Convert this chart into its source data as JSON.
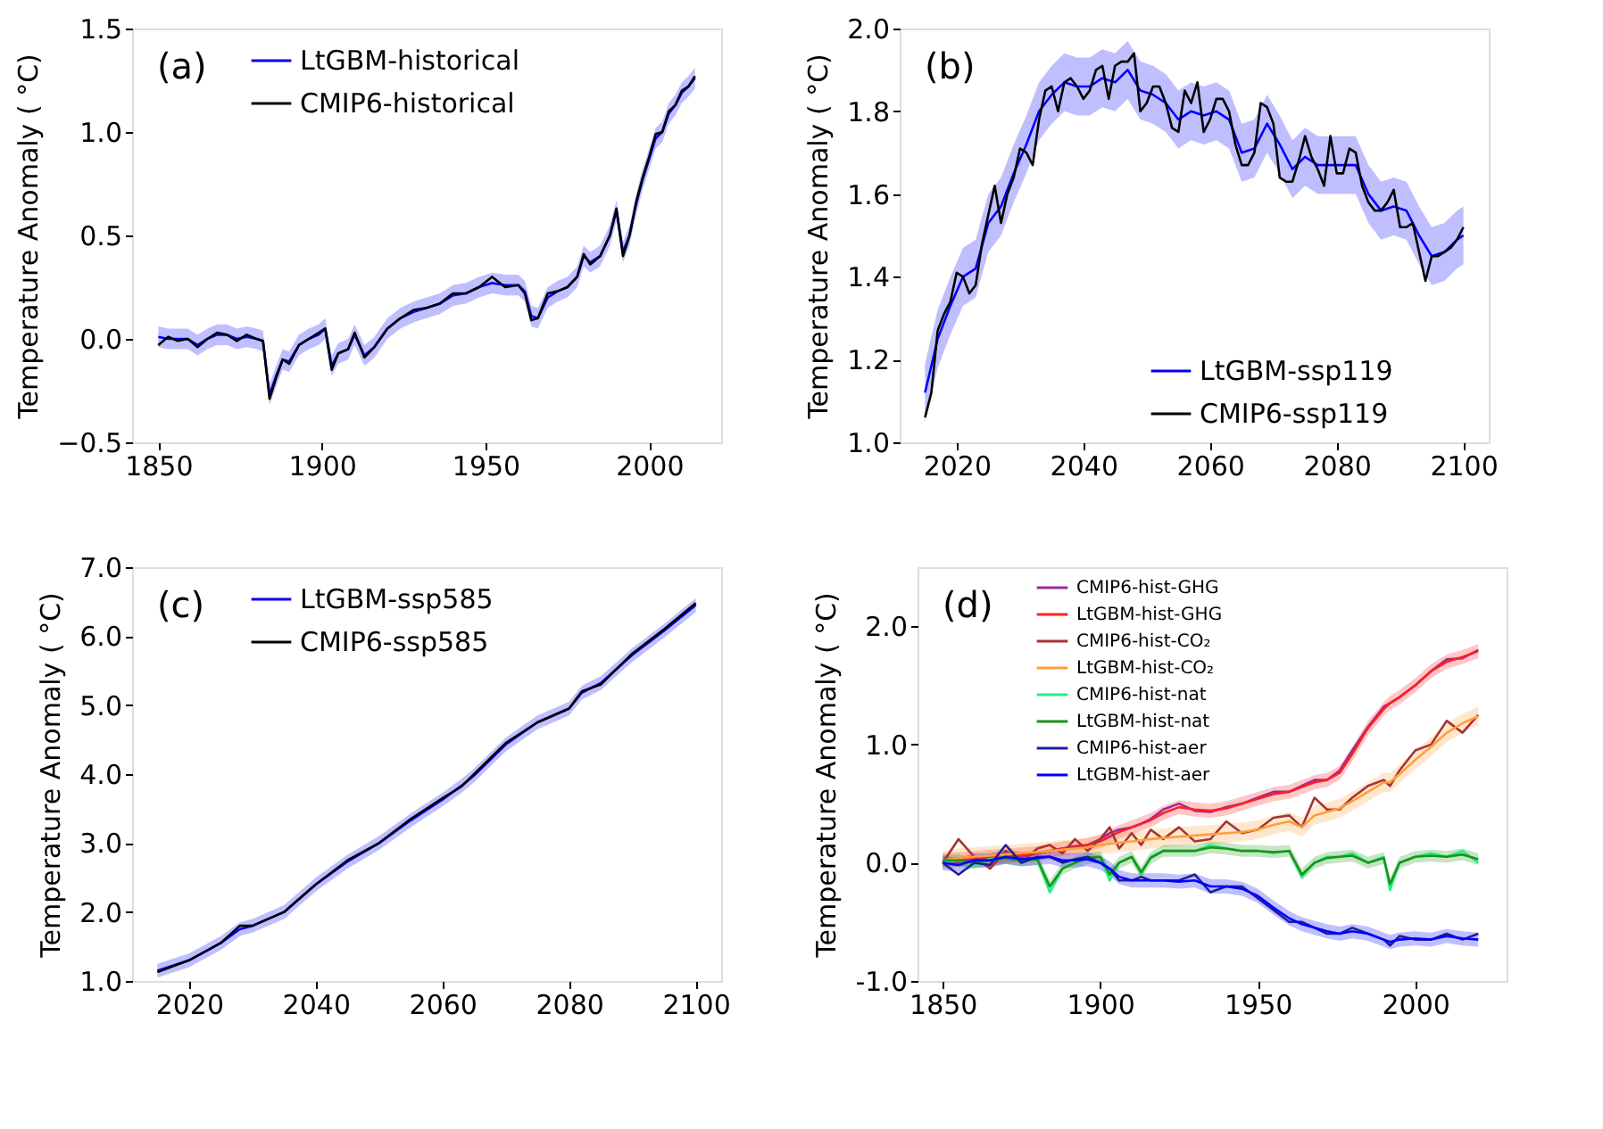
{
  "chart_data": [
    {
      "type": "line",
      "ylabel": "Temperature Anomaly ( °C)",
      "annotations": [
        "(a)"
      ],
      "legend": "top left",
      "xlim": [
        1842,
        2022
      ],
      "xticks": [
        1850,
        1900,
        1950,
        2000
      ],
      "ylim": [
        -0.5,
        1.5
      ],
      "yticks": [
        {
          "value": -0.5,
          "label": "−0.5"
        },
        {
          "value": 0,
          "label": "0.0"
        },
        {
          "value": 0.5,
          "label": "0.5"
        },
        {
          "value": 1,
          "label": "1.0"
        },
        {
          "value": 1.5,
          "label": "1.5"
        }
      ],
      "x": [
        1850,
        1853,
        1856,
        1859,
        1862,
        1865,
        1868,
        1871,
        1874,
        1877,
        1880,
        1882,
        1884,
        1886,
        1888,
        1890,
        1893,
        1896,
        1899,
        1901,
        1903,
        1905,
        1908,
        1910,
        1913,
        1916,
        1920,
        1924,
        1928,
        1932,
        1936,
        1940,
        1944,
        1948,
        1952,
        1956,
        1960,
        1962,
        1964,
        1966,
        1969,
        1972,
        1975,
        1978,
        1980,
        1982,
        1985,
        1988,
        1990,
        1992,
        1994,
        1996,
        1998,
        2000,
        2002,
        2004,
        2006,
        2008,
        2010,
        2012,
        2014
      ],
      "series": [
        {
          "name": "LtGBM-historical",
          "color": "#0000ff",
          "values": [
            0.01,
            0.0,
            0.0,
            0.0,
            -0.03,
            0.0,
            0.02,
            0.02,
            0.0,
            0.01,
            0.0,
            -0.01,
            -0.27,
            -0.18,
            -0.1,
            -0.11,
            -0.03,
            0.0,
            0.02,
            0.05,
            -0.13,
            -0.07,
            -0.05,
            0.02,
            -0.08,
            -0.04,
            0.05,
            0.1,
            0.13,
            0.15,
            0.17,
            0.21,
            0.22,
            0.25,
            0.27,
            0.26,
            0.26,
            0.23,
            0.11,
            0.1,
            0.2,
            0.23,
            0.25,
            0.3,
            0.4,
            0.37,
            0.4,
            0.5,
            0.62,
            0.42,
            0.5,
            0.65,
            0.77,
            0.87,
            0.97,
            1.0,
            1.09,
            1.13,
            1.19,
            1.22,
            1.26
          ],
          "lower": [
            -0.04,
            -0.05,
            -0.05,
            -0.05,
            -0.08,
            -0.05,
            -0.03,
            -0.03,
            -0.05,
            -0.04,
            -0.05,
            -0.06,
            -0.32,
            -0.23,
            -0.15,
            -0.16,
            -0.08,
            -0.05,
            -0.03,
            0.0,
            -0.18,
            -0.12,
            -0.1,
            -0.03,
            -0.13,
            -0.09,
            0.0,
            0.05,
            0.08,
            0.1,
            0.12,
            0.16,
            0.17,
            0.2,
            0.22,
            0.21,
            0.21,
            0.18,
            0.06,
            0.05,
            0.15,
            0.18,
            0.2,
            0.25,
            0.35,
            0.32,
            0.35,
            0.45,
            0.57,
            0.37,
            0.45,
            0.6,
            0.72,
            0.82,
            0.92,
            0.95,
            1.04,
            1.08,
            1.14,
            1.17,
            1.21
          ],
          "upper": [
            0.06,
            0.05,
            0.05,
            0.05,
            0.02,
            0.05,
            0.07,
            0.07,
            0.05,
            0.06,
            0.05,
            0.04,
            -0.22,
            -0.13,
            -0.05,
            -0.06,
            0.02,
            0.05,
            0.07,
            0.1,
            -0.08,
            -0.02,
            0.0,
            0.07,
            -0.03,
            0.01,
            0.1,
            0.15,
            0.18,
            0.2,
            0.22,
            0.26,
            0.27,
            0.3,
            0.32,
            0.31,
            0.31,
            0.28,
            0.16,
            0.15,
            0.25,
            0.28,
            0.3,
            0.35,
            0.45,
            0.42,
            0.45,
            0.55,
            0.67,
            0.47,
            0.55,
            0.7,
            0.82,
            0.92,
            1.02,
            1.05,
            1.14,
            1.18,
            1.24,
            1.27,
            1.31
          ]
        },
        {
          "name": "CMIP6-historical",
          "color": "#000000",
          "values": [
            -0.03,
            0.01,
            -0.01,
            0.0,
            -0.04,
            0.0,
            0.03,
            0.02,
            -0.01,
            0.02,
            0.0,
            -0.01,
            -0.29,
            -0.19,
            -0.1,
            -0.12,
            -0.03,
            0.0,
            0.03,
            0.05,
            -0.15,
            -0.07,
            -0.05,
            0.03,
            -0.09,
            -0.04,
            0.05,
            0.1,
            0.14,
            0.15,
            0.17,
            0.22,
            0.22,
            0.25,
            0.3,
            0.25,
            0.26,
            0.22,
            0.09,
            0.1,
            0.22,
            0.23,
            0.25,
            0.3,
            0.41,
            0.36,
            0.4,
            0.5,
            0.63,
            0.4,
            0.5,
            0.66,
            0.78,
            0.88,
            0.99,
            1.0,
            1.1,
            1.13,
            1.2,
            1.22,
            1.27
          ]
        }
      ]
    },
    {
      "type": "line",
      "ylabel": "Temperature Anomaly ( °C)",
      "annotations": [
        "(b)"
      ],
      "legend": "bottom right",
      "xlim": [
        2011,
        2104
      ],
      "xticks": [
        2020,
        2040,
        2060,
        2080,
        2100
      ],
      "ylim": [
        1.0,
        2.0
      ],
      "yticks": [
        {
          "value": 1,
          "label": "1.0"
        },
        1.2,
        1.4,
        1.6,
        1.8,
        {
          "value": 2,
          "label": "2.0"
        }
      ],
      "series": [
        {
          "name": "LtGBM-ssp119",
          "color": "#0000ff",
          "x": [
            2015,
            2017,
            2019,
            2021,
            2023,
            2025,
            2027,
            2029,
            2031,
            2033,
            2035,
            2037,
            2039,
            2041,
            2043,
            2045,
            2047,
            2049,
            2051,
            2053,
            2055,
            2057,
            2059,
            2061,
            2063,
            2065,
            2067,
            2069,
            2071,
            2073,
            2075,
            2077,
            2079,
            2081,
            2083,
            2085,
            2087,
            2089,
            2091,
            2093,
            2095,
            2097,
            2099,
            2100
          ],
          "values": [
            1.12,
            1.25,
            1.33,
            1.4,
            1.42,
            1.53,
            1.57,
            1.65,
            1.72,
            1.8,
            1.84,
            1.87,
            1.86,
            1.86,
            1.88,
            1.87,
            1.9,
            1.85,
            1.84,
            1.82,
            1.78,
            1.8,
            1.79,
            1.8,
            1.78,
            1.7,
            1.71,
            1.77,
            1.72,
            1.66,
            1.69,
            1.67,
            1.67,
            1.67,
            1.67,
            1.6,
            1.56,
            1.57,
            1.56,
            1.5,
            1.45,
            1.46,
            1.49,
            1.5
          ],
          "lower": [
            1.05,
            1.18,
            1.26,
            1.33,
            1.35,
            1.46,
            1.5,
            1.58,
            1.65,
            1.73,
            1.77,
            1.8,
            1.79,
            1.79,
            1.81,
            1.8,
            1.83,
            1.78,
            1.77,
            1.75,
            1.71,
            1.73,
            1.72,
            1.73,
            1.71,
            1.63,
            1.64,
            1.7,
            1.65,
            1.59,
            1.62,
            1.6,
            1.6,
            1.6,
            1.6,
            1.53,
            1.49,
            1.5,
            1.49,
            1.43,
            1.38,
            1.39,
            1.42,
            1.43
          ],
          "upper": [
            1.19,
            1.32,
            1.4,
            1.47,
            1.49,
            1.6,
            1.64,
            1.72,
            1.79,
            1.87,
            1.91,
            1.94,
            1.93,
            1.93,
            1.95,
            1.94,
            1.97,
            1.92,
            1.91,
            1.89,
            1.85,
            1.87,
            1.86,
            1.87,
            1.85,
            1.77,
            1.78,
            1.84,
            1.79,
            1.73,
            1.76,
            1.74,
            1.74,
            1.74,
            1.74,
            1.67,
            1.63,
            1.64,
            1.63,
            1.57,
            1.52,
            1.53,
            1.56,
            1.57
          ]
        },
        {
          "name": "CMIP6-ssp119",
          "color": "#000000",
          "x": [
            2015,
            2016,
            2017,
            2018,
            2019,
            2020,
            2021,
            2022,
            2023,
            2024,
            2025,
            2026,
            2027,
            2028,
            2029,
            2030,
            2031,
            2032,
            2033,
            2034,
            2035,
            2036,
            2037,
            2038,
            2039,
            2040,
            2041,
            2042,
            2043,
            2044,
            2045,
            2046,
            2047,
            2048,
            2049,
            2050,
            2051,
            2052,
            2053,
            2054,
            2055,
            2056,
            2057,
            2058,
            2059,
            2060,
            2061,
            2062,
            2063,
            2064,
            2065,
            2066,
            2067,
            2068,
            2069,
            2070,
            2071,
            2072,
            2073,
            2074,
            2075,
            2076,
            2077,
            2078,
            2079,
            2080,
            2081,
            2082,
            2083,
            2084,
            2085,
            2086,
            2087,
            2088,
            2089,
            2090,
            2091,
            2092,
            2093,
            2094,
            2095,
            2096,
            2097,
            2098,
            2099,
            2100
          ],
          "values": [
            1.06,
            1.12,
            1.27,
            1.31,
            1.34,
            1.41,
            1.4,
            1.36,
            1.38,
            1.48,
            1.55,
            1.62,
            1.53,
            1.6,
            1.64,
            1.71,
            1.7,
            1.67,
            1.78,
            1.85,
            1.86,
            1.8,
            1.87,
            1.88,
            1.86,
            1.83,
            1.85,
            1.9,
            1.91,
            1.83,
            1.91,
            1.92,
            1.92,
            1.94,
            1.8,
            1.82,
            1.86,
            1.86,
            1.82,
            1.76,
            1.75,
            1.85,
            1.82,
            1.87,
            1.75,
            1.78,
            1.83,
            1.83,
            1.8,
            1.72,
            1.67,
            1.67,
            1.7,
            1.82,
            1.81,
            1.77,
            1.64,
            1.63,
            1.63,
            1.68,
            1.74,
            1.69,
            1.66,
            1.62,
            1.74,
            1.65,
            1.65,
            1.71,
            1.7,
            1.62,
            1.58,
            1.56,
            1.56,
            1.58,
            1.61,
            1.52,
            1.52,
            1.53,
            1.46,
            1.39,
            1.45,
            1.45,
            1.46,
            1.47,
            1.49,
            1.52
          ]
        }
      ]
    },
    {
      "type": "line",
      "ylabel": "Temperature Anomaly ( °C)",
      "annotations": [
        "(c)"
      ],
      "legend": "top left",
      "xlim": [
        2011,
        2104
      ],
      "xticks": [
        2020,
        2040,
        2060,
        2080,
        2100
      ],
      "ylim": [
        1.0,
        7.0
      ],
      "yticks": [
        {
          "value": 1,
          "label": "1.0"
        },
        {
          "value": 2,
          "label": "2.0"
        },
        {
          "value": 3,
          "label": "3.0"
        },
        {
          "value": 4,
          "label": "4.0"
        },
        {
          "value": 5,
          "label": "5.0"
        },
        {
          "value": 6,
          "label": "6.0"
        },
        {
          "value": 7,
          "label": "7.0"
        }
      ],
      "x": [
        2015,
        2020,
        2025,
        2028,
        2030,
        2035,
        2040,
        2045,
        2050,
        2055,
        2060,
        2063,
        2065,
        2070,
        2075,
        2080,
        2082,
        2085,
        2090,
        2095,
        2100
      ],
      "series": [
        {
          "name": "LtGBM-ssp585",
          "color": "#0000ff",
          "values": [
            1.15,
            1.3,
            1.55,
            1.75,
            1.8,
            2.0,
            2.4,
            2.73,
            3.0,
            3.33,
            3.63,
            3.83,
            3.98,
            4.43,
            4.75,
            4.95,
            5.18,
            5.32,
            5.73,
            6.08,
            6.45
          ],
          "lower": [
            1.05,
            1.2,
            1.45,
            1.65,
            1.7,
            1.9,
            2.3,
            2.63,
            2.9,
            3.23,
            3.53,
            3.73,
            3.88,
            4.33,
            4.65,
            4.85,
            5.08,
            5.22,
            5.63,
            5.98,
            6.35
          ],
          "upper": [
            1.25,
            1.4,
            1.65,
            1.85,
            1.9,
            2.1,
            2.5,
            2.83,
            3.1,
            3.43,
            3.73,
            3.93,
            4.08,
            4.53,
            4.85,
            5.05,
            5.28,
            5.42,
            5.83,
            6.18,
            6.55
          ]
        },
        {
          "name": "CMIP6-ssp585",
          "color": "#000000",
          "values": [
            1.13,
            1.3,
            1.55,
            1.8,
            1.8,
            2.0,
            2.4,
            2.75,
            3.0,
            3.35,
            3.65,
            3.82,
            4.0,
            4.45,
            4.75,
            4.95,
            5.2,
            5.3,
            5.75,
            6.1,
            6.48
          ]
        }
      ]
    },
    {
      "type": "line",
      "ylabel": "Temperature Anomaly ( °C)",
      "annotations": [
        "(d)"
      ],
      "legend": "top left",
      "xlim": [
        1842,
        2029
      ],
      "xticks": [
        1850,
        1900,
        1950,
        2000
      ],
      "ylim": [
        -1.0,
        2.5
      ],
      "yticks": [
        {
          "value": -1,
          "label": "-1.0"
        },
        {
          "value": 0,
          "label": "0.0"
        },
        {
          "value": 1,
          "label": "1.0"
        },
        {
          "value": 2,
          "label": "2.0"
        }
      ],
      "x": [
        1850,
        1855,
        1860,
        1865,
        1870,
        1875,
        1880,
        1884,
        1888,
        1892,
        1896,
        1900,
        1903,
        1906,
        1910,
        1913,
        1916,
        1920,
        1925,
        1930,
        1935,
        1940,
        1945,
        1950,
        1955,
        1960,
        1964,
        1968,
        1972,
        1976,
        1980,
        1985,
        1990,
        1992,
        1995,
        2000,
        2005,
        2010,
        2015,
        2020
      ],
      "series": [
        {
          "name": "CMIP6-hist-GHG",
          "color": "#9b2a9b",
          "values": [
            0.02,
            0.0,
            0.04,
            0.02,
            0.05,
            0.05,
            0.08,
            0.1,
            0.12,
            0.14,
            0.15,
            0.2,
            0.25,
            0.28,
            0.3,
            0.33,
            0.37,
            0.45,
            0.5,
            0.44,
            0.43,
            0.47,
            0.5,
            0.55,
            0.6,
            0.6,
            0.65,
            0.7,
            0.7,
            0.78,
            0.95,
            1.15,
            1.32,
            1.35,
            1.4,
            1.5,
            1.62,
            1.72,
            1.73,
            1.8
          ]
        },
        {
          "name": "LtGBM-hist-GHG",
          "color": "#ff2020",
          "values": [
            0.02,
            0.03,
            0.04,
            0.05,
            0.06,
            0.07,
            0.08,
            0.1,
            0.12,
            0.13,
            0.15,
            0.18,
            0.22,
            0.26,
            0.3,
            0.33,
            0.36,
            0.42,
            0.47,
            0.45,
            0.44,
            0.46,
            0.5,
            0.54,
            0.58,
            0.6,
            0.64,
            0.68,
            0.7,
            0.76,
            0.92,
            1.14,
            1.3,
            1.35,
            1.4,
            1.5,
            1.62,
            1.7,
            1.74,
            1.79
          ],
          "lower": [
            -0.04,
            -0.03,
            -0.02,
            -0.01,
            0.0,
            0.01,
            0.02,
            0.04,
            0.06,
            0.07,
            0.09,
            0.12,
            0.16,
            0.2,
            0.24,
            0.27,
            0.3,
            0.36,
            0.41,
            0.39,
            0.38,
            0.4,
            0.44,
            0.48,
            0.52,
            0.54,
            0.58,
            0.62,
            0.64,
            0.7,
            0.86,
            1.08,
            1.24,
            1.29,
            1.34,
            1.44,
            1.56,
            1.64,
            1.68,
            1.73
          ],
          "upper": [
            0.08,
            0.09,
            0.1,
            0.11,
            0.12,
            0.13,
            0.14,
            0.16,
            0.18,
            0.19,
            0.21,
            0.24,
            0.28,
            0.32,
            0.36,
            0.39,
            0.42,
            0.48,
            0.53,
            0.51,
            0.5,
            0.52,
            0.56,
            0.6,
            0.64,
            0.66,
            0.7,
            0.74,
            0.76,
            0.82,
            0.98,
            1.2,
            1.36,
            1.41,
            1.46,
            1.56,
            1.68,
            1.76,
            1.8,
            1.85
          ]
        },
        {
          "name": "CMIP6-hist-CO₂",
          "color": "#a83232",
          "values": [
            0.0,
            0.2,
            0.05,
            -0.05,
            0.1,
            0.0,
            0.12,
            0.15,
            0.08,
            0.2,
            0.1,
            0.2,
            0.3,
            0.12,
            0.25,
            0.15,
            0.28,
            0.2,
            0.3,
            0.18,
            0.2,
            0.35,
            0.25,
            0.28,
            0.38,
            0.4,
            0.3,
            0.55,
            0.45,
            0.45,
            0.55,
            0.65,
            0.7,
            0.65,
            0.78,
            0.95,
            1.0,
            1.2,
            1.1,
            1.25
          ]
        },
        {
          "name": "LtGBM-hist-CO₂",
          "color": "#ff9f3a",
          "values": [
            0.02,
            0.04,
            0.05,
            0.06,
            0.07,
            0.08,
            0.09,
            0.1,
            0.11,
            0.12,
            0.13,
            0.15,
            0.16,
            0.17,
            0.18,
            0.19,
            0.2,
            0.21,
            0.22,
            0.23,
            0.24,
            0.25,
            0.26,
            0.28,
            0.32,
            0.35,
            0.3,
            0.4,
            0.43,
            0.46,
            0.52,
            0.6,
            0.68,
            0.68,
            0.75,
            0.87,
            0.98,
            1.1,
            1.18,
            1.24
          ],
          "lower": [
            -0.06,
            -0.04,
            -0.03,
            -0.02,
            -0.01,
            0.0,
            0.01,
            0.02,
            0.03,
            0.04,
            0.05,
            0.07,
            0.08,
            0.09,
            0.1,
            0.11,
            0.12,
            0.13,
            0.14,
            0.15,
            0.16,
            0.17,
            0.18,
            0.2,
            0.24,
            0.27,
            0.22,
            0.32,
            0.35,
            0.38,
            0.44,
            0.52,
            0.6,
            0.6,
            0.67,
            0.79,
            0.9,
            1.02,
            1.1,
            1.16
          ],
          "upper": [
            0.1,
            0.12,
            0.13,
            0.14,
            0.15,
            0.16,
            0.17,
            0.18,
            0.19,
            0.2,
            0.21,
            0.23,
            0.24,
            0.25,
            0.26,
            0.27,
            0.28,
            0.29,
            0.3,
            0.31,
            0.32,
            0.33,
            0.34,
            0.36,
            0.4,
            0.43,
            0.38,
            0.48,
            0.51,
            0.54,
            0.6,
            0.68,
            0.76,
            0.76,
            0.83,
            0.95,
            1.06,
            1.18,
            1.26,
            1.32
          ]
        },
        {
          "name": "CMIP6-hist-nat",
          "color": "#1ef07a",
          "values": [
            0.0,
            0.02,
            -0.03,
            0.03,
            0.05,
            0.02,
            0.03,
            -0.25,
            -0.05,
            0.0,
            0.05,
            0.05,
            -0.15,
            0.0,
            0.05,
            -0.1,
            0.05,
            0.1,
            0.1,
            0.1,
            0.15,
            0.12,
            0.1,
            0.1,
            0.08,
            0.1,
            -0.12,
            0.0,
            0.05,
            0.05,
            0.08,
            0.0,
            0.05,
            -0.23,
            0.0,
            0.05,
            0.08,
            0.05,
            0.1,
            0.0
          ]
        },
        {
          "name": "LtGBM-hist-nat",
          "color": "#1a941a",
          "values": [
            0.02,
            0.02,
            0.0,
            0.02,
            0.04,
            0.02,
            0.03,
            -0.2,
            -0.05,
            0.0,
            0.04,
            0.05,
            -0.1,
            0.0,
            0.05,
            -0.08,
            0.04,
            0.1,
            0.1,
            0.1,
            0.13,
            0.12,
            0.1,
            0.1,
            0.09,
            0.1,
            -0.1,
            0.0,
            0.04,
            0.05,
            0.06,
            0.0,
            0.04,
            -0.18,
            0.0,
            0.05,
            0.06,
            0.05,
            0.07,
            0.03
          ],
          "lower": [
            -0.03,
            -0.03,
            -0.05,
            -0.03,
            -0.01,
            -0.03,
            -0.02,
            -0.25,
            -0.1,
            -0.05,
            -0.01,
            0.0,
            -0.15,
            -0.05,
            0.0,
            -0.13,
            -0.01,
            0.05,
            0.05,
            0.05,
            0.08,
            0.07,
            0.05,
            0.05,
            0.04,
            0.05,
            -0.15,
            -0.05,
            -0.01,
            0.0,
            0.01,
            -0.05,
            -0.01,
            -0.23,
            -0.05,
            0.0,
            0.01,
            0.0,
            0.02,
            -0.02
          ],
          "upper": [
            0.07,
            0.07,
            0.05,
            0.07,
            0.09,
            0.07,
            0.08,
            -0.15,
            0.0,
            0.05,
            0.09,
            0.1,
            -0.05,
            0.05,
            0.1,
            -0.03,
            0.09,
            0.15,
            0.15,
            0.15,
            0.18,
            0.17,
            0.15,
            0.15,
            0.14,
            0.15,
            -0.05,
            0.05,
            0.09,
            0.1,
            0.11,
            0.05,
            0.09,
            -0.13,
            0.05,
            0.1,
            0.11,
            0.1,
            0.12,
            0.08
          ]
        },
        {
          "name": "CMIP6-hist-aer",
          "color": "#1e1e9a",
          "values": [
            0.0,
            -0.1,
            0.0,
            -0.02,
            0.15,
            0.0,
            0.05,
            0.05,
            0.0,
            0.03,
            0.05,
            0.0,
            -0.05,
            -0.15,
            -0.15,
            -0.12,
            -0.15,
            -0.15,
            -0.15,
            -0.1,
            -0.25,
            -0.2,
            -0.2,
            -0.3,
            -0.4,
            -0.5,
            -0.5,
            -0.55,
            -0.6,
            -0.6,
            -0.55,
            -0.6,
            -0.65,
            -0.7,
            -0.62,
            -0.65,
            -0.65,
            -0.6,
            -0.65,
            -0.6
          ]
        },
        {
          "name": "LtGBM-hist-aer",
          "color": "#0000ff",
          "values": [
            0.0,
            -0.02,
            0.02,
            0.02,
            0.05,
            0.03,
            0.04,
            0.05,
            0.02,
            0.02,
            0.03,
            0.0,
            -0.05,
            -0.12,
            -0.15,
            -0.15,
            -0.15,
            -0.15,
            -0.16,
            -0.15,
            -0.2,
            -0.2,
            -0.22,
            -0.28,
            -0.38,
            -0.47,
            -0.52,
            -0.55,
            -0.58,
            -0.6,
            -0.58,
            -0.6,
            -0.65,
            -0.67,
            -0.65,
            -0.64,
            -0.65,
            -0.62,
            -0.64,
            -0.65
          ],
          "lower": [
            -0.06,
            -0.08,
            -0.04,
            -0.04,
            -0.01,
            -0.03,
            -0.02,
            -0.01,
            -0.04,
            -0.04,
            -0.03,
            -0.06,
            -0.11,
            -0.18,
            -0.21,
            -0.21,
            -0.21,
            -0.21,
            -0.22,
            -0.21,
            -0.26,
            -0.26,
            -0.28,
            -0.34,
            -0.44,
            -0.53,
            -0.58,
            -0.61,
            -0.64,
            -0.66,
            -0.64,
            -0.66,
            -0.71,
            -0.73,
            -0.71,
            -0.7,
            -0.71,
            -0.68,
            -0.7,
            -0.71
          ],
          "upper": [
            0.06,
            0.04,
            0.08,
            0.08,
            0.11,
            0.09,
            0.1,
            0.11,
            0.08,
            0.08,
            0.09,
            0.06,
            0.01,
            -0.06,
            -0.09,
            -0.09,
            -0.09,
            -0.09,
            -0.1,
            -0.09,
            -0.14,
            -0.14,
            -0.16,
            -0.22,
            -0.32,
            -0.41,
            -0.46,
            -0.49,
            -0.52,
            -0.54,
            -0.52,
            -0.54,
            -0.59,
            -0.61,
            -0.59,
            -0.58,
            -0.59,
            -0.56,
            -0.58,
            -0.59
          ]
        }
      ]
    }
  ]
}
